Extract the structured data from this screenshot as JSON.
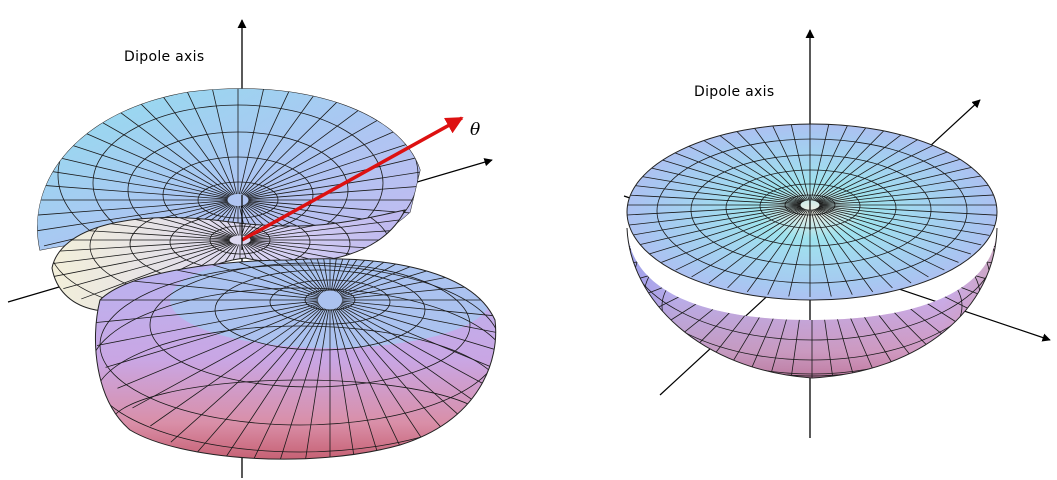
{
  "left_panel": {
    "axis_label": "Dipole axis",
    "angle_label": "θ"
  },
  "right_panel": {
    "axis_label": "Dipole axis"
  },
  "colors": {
    "arrow_accent": "#dd1111",
    "surface_top": "#9fd7ea",
    "surface_mid": "#b3b6ee",
    "surface_bottom": "#d87a8c",
    "mesh_line": "#1a1a1a"
  }
}
